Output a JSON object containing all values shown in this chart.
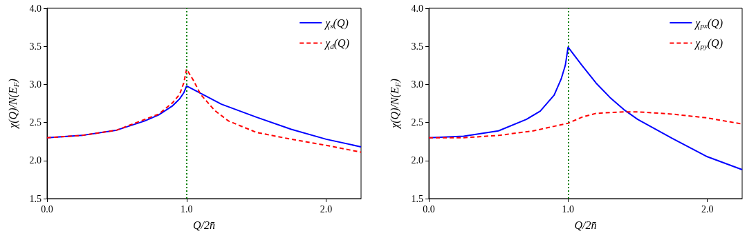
{
  "chart_data": [
    {
      "type": "line",
      "xlabel": "Q/2n̄",
      "ylabel": "χ(Q)/N(E$_{F}$)",
      "xlim": [
        0,
        2.25
      ],
      "xticks": [
        {
          "value": 0,
          "label": "0.0"
        },
        {
          "value": 1,
          "label": "1.0"
        },
        {
          "value": 2,
          "label": "2.0"
        }
      ],
      "ylim": [
        1.5,
        4.0
      ],
      "yticks": [
        1.5,
        {
          "value": 2,
          "label": "2.0"
        },
        2.5,
        {
          "value": 3,
          "label": "3.0"
        },
        3.5,
        {
          "value": 4,
          "label": "4.0"
        }
      ],
      "grid": false,
      "legend": "top right",
      "ref_lines": [
        {
          "axis": "x",
          "value": 1.0,
          "color": "#008000",
          "line_style": "dotted"
        }
      ],
      "series": [
        {
          "name": "χ$_{s}$(Q)",
          "color": "#0000ff",
          "line_style": "solid",
          "x": [
            0,
            0.25,
            0.5,
            0.7,
            0.8,
            0.9,
            0.95,
            0.98,
            1.0,
            1.25,
            1.5,
            1.75,
            2.0,
            2.25
          ],
          "values": [
            2.3,
            2.33,
            2.4,
            2.52,
            2.6,
            2.72,
            2.81,
            2.89,
            2.98,
            2.74,
            2.57,
            2.41,
            2.28,
            2.18
          ]
        },
        {
          "name": "χ$_{d}$(Q)",
          "color": "#ff0000",
          "line_style": "dashed",
          "x": [
            0,
            0.25,
            0.5,
            0.8,
            0.9,
            0.95,
            0.98,
            1.0,
            1.02,
            1.05,
            1.1,
            1.2,
            1.3,
            1.5,
            1.75,
            2.0,
            2.25
          ],
          "values": [
            2.3,
            2.33,
            2.4,
            2.61,
            2.76,
            2.87,
            3.02,
            3.2,
            3.14,
            3.05,
            2.87,
            2.66,
            2.52,
            2.37,
            2.28,
            2.2,
            2.11
          ]
        }
      ]
    },
    {
      "type": "line",
      "xlabel": "Q/2n̄",
      "ylabel": "χ(Q)/N(E$_{F}$)",
      "xlim": [
        0,
        2.25
      ],
      "xticks": [
        {
          "value": 0,
          "label": "0.0"
        },
        {
          "value": 1,
          "label": "1.0"
        },
        {
          "value": 2,
          "label": "2.0"
        }
      ],
      "ylim": [
        1.5,
        4.0
      ],
      "yticks": [
        1.5,
        {
          "value": 2,
          "label": "2.0"
        },
        2.5,
        {
          "value": 3,
          "label": "3.0"
        },
        3.5,
        {
          "value": 4,
          "label": "4.0"
        }
      ],
      "grid": false,
      "legend": "top right",
      "ref_lines": [
        {
          "axis": "x",
          "value": 1.0,
          "color": "#008000",
          "line_style": "dotted"
        }
      ],
      "series": [
        {
          "name": "χ$_{px}$(Q)",
          "color": "#0000ff",
          "line_style": "solid",
          "x": [
            0,
            0.25,
            0.5,
            0.7,
            0.8,
            0.9,
            0.95,
            0.98,
            1.0,
            1.1,
            1.2,
            1.3,
            1.4,
            1.5,
            1.75,
            2.0,
            2.25
          ],
          "values": [
            2.3,
            2.32,
            2.39,
            2.54,
            2.65,
            2.86,
            3.07,
            3.25,
            3.49,
            3.25,
            3.02,
            2.83,
            2.67,
            2.54,
            2.29,
            2.05,
            1.88
          ]
        },
        {
          "name": "χ$_{py}$(Q)",
          "color": "#ff0000",
          "line_style": "dashed",
          "x": [
            0,
            0.25,
            0.5,
            0.75,
            0.9,
            1.0,
            1.1,
            1.2,
            1.4,
            1.5,
            1.75,
            2.0,
            2.25
          ],
          "values": [
            2.3,
            2.3,
            2.33,
            2.39,
            2.45,
            2.49,
            2.57,
            2.62,
            2.64,
            2.64,
            2.61,
            2.56,
            2.48
          ]
        }
      ]
    }
  ]
}
